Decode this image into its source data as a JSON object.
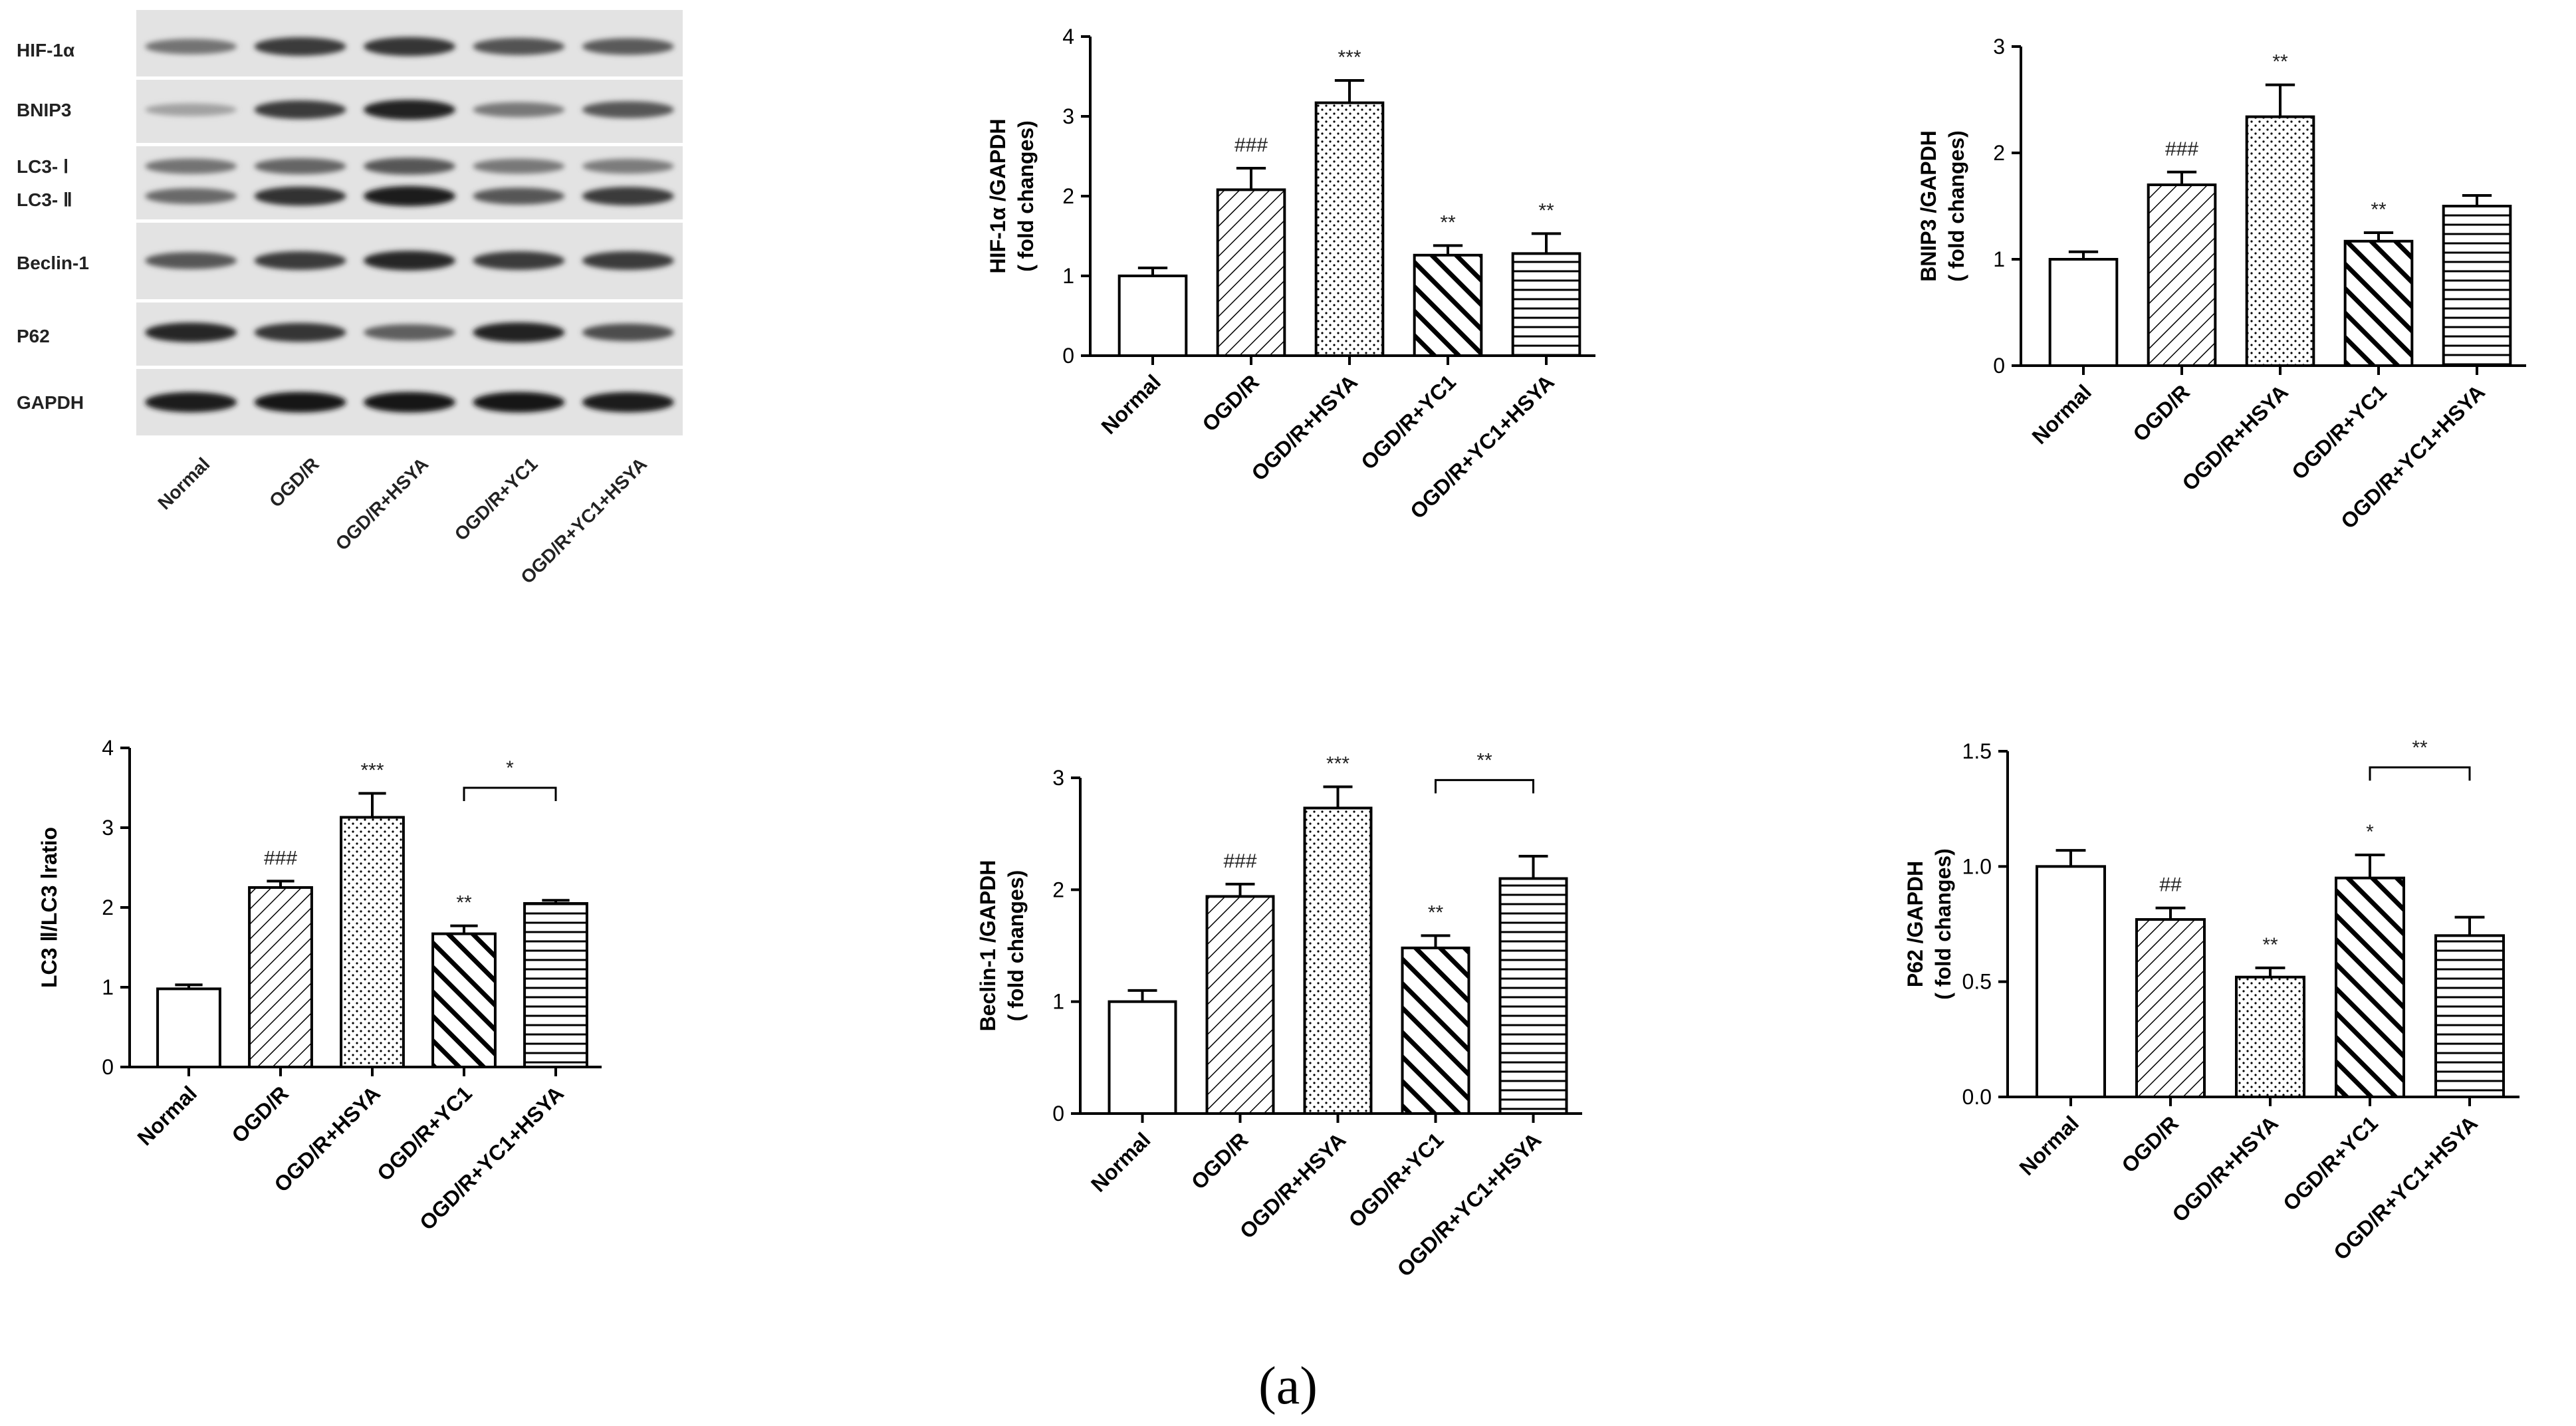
{
  "figure": {
    "caption": "(a)"
  },
  "blot": {
    "rows": [
      {
        "label": "HIF-1α",
        "bands": [
          0.45,
          0.75,
          0.78,
          0.62,
          0.58
        ]
      },
      {
        "label": "BNIP3",
        "bands": [
          0.2,
          0.75,
          0.88,
          0.42,
          0.6
        ]
      },
      {
        "label": "LC3- Ⅰ",
        "bands": [
          0.45,
          0.52,
          0.6,
          0.42,
          0.4
        ]
      },
      {
        "label": "LC3- Ⅱ",
        "bands": [
          0.5,
          0.8,
          0.9,
          0.6,
          0.75
        ]
      },
      {
        "label": "Beclin-1",
        "bands": [
          0.6,
          0.75,
          0.85,
          0.75,
          0.75
        ]
      },
      {
        "label": "P62",
        "bands": [
          0.85,
          0.78,
          0.55,
          0.88,
          0.65
        ]
      },
      {
        "label": "GAPDH",
        "bands": [
          0.9,
          0.92,
          0.92,
          0.92,
          0.9
        ]
      }
    ],
    "lanes": [
      "Normal",
      "OGD/R",
      "OGD/R+HSYA",
      "OGD/R+YC1",
      "OGD/R+YC1+HSYA"
    ]
  },
  "chart_data": [
    {
      "type": "bar",
      "ylabel": "HIF-1α /GAPDH",
      "ylabel2": "( fold changes)",
      "categories": [
        "Normal",
        "OGD/R",
        "OGD/R+HSYA",
        "OGD/R+YC1",
        "OGD/R+YC1+HSYA"
      ],
      "values": [
        1.0,
        2.08,
        3.17,
        1.26,
        1.28
      ],
      "errors": [
        0.1,
        0.27,
        0.28,
        0.12,
        0.25
      ],
      "annotations": [
        "",
        "###",
        "***",
        "**",
        "**"
      ],
      "ylim": [
        0,
        4
      ],
      "yticks": [
        "0",
        "1",
        "2",
        "3",
        "4"
      ],
      "brackets": []
    },
    {
      "type": "bar",
      "ylabel": "BNIP3 /GAPDH",
      "ylabel2": "( fold changes)",
      "categories": [
        "Normal",
        "OGD/R",
        "OGD/R+HSYA",
        "OGD/R+YC1",
        "OGD/R+YC1+HSYA"
      ],
      "values": [
        1.0,
        1.7,
        2.34,
        1.17,
        1.5
      ],
      "errors": [
        0.07,
        0.12,
        0.3,
        0.08,
        0.1
      ],
      "annotations": [
        "",
        "###",
        "**",
        "**",
        ""
      ],
      "ylim": [
        0,
        3
      ],
      "yticks": [
        "0",
        "1",
        "2",
        "3"
      ],
      "brackets": []
    },
    {
      "type": "bar",
      "ylabel": "LC3 Ⅱ/LC3  Ⅰratio",
      "ylabel2": "",
      "categories": [
        "Normal",
        "OGD/R",
        "OGD/R+HSYA",
        "OGD/R+YC1",
        "OGD/R+YC1+HSYA"
      ],
      "values": [
        0.98,
        2.25,
        3.13,
        1.67,
        2.05
      ],
      "errors": [
        0.05,
        0.08,
        0.3,
        0.1,
        0.04
      ],
      "annotations": [
        "",
        "###",
        "***",
        "**",
        ""
      ],
      "ylim": [
        0,
        4
      ],
      "yticks": [
        "0",
        "1",
        "2",
        "3",
        "4"
      ],
      "brackets": [
        {
          "from": 3,
          "to": 4,
          "label": "*",
          "y": 3.5
        }
      ]
    },
    {
      "type": "bar",
      "ylabel": "Beclin-1 /GAPDH",
      "ylabel2": "( fold changes)",
      "categories": [
        "Normal",
        "OGD/R",
        "OGD/R+HSYA",
        "OGD/R+YC1",
        "OGD/R+YC1+HSYA"
      ],
      "values": [
        1.0,
        1.94,
        2.73,
        1.48,
        2.1
      ],
      "errors": [
        0.1,
        0.11,
        0.19,
        0.11,
        0.2
      ],
      "annotations": [
        "",
        "###",
        "***",
        "**",
        ""
      ],
      "ylim": [
        0,
        3
      ],
      "yticks": [
        "0",
        "1",
        "2",
        "3"
      ],
      "brackets": [
        {
          "from": 3,
          "to": 4,
          "label": "**",
          "y": 2.98
        }
      ]
    },
    {
      "type": "bar",
      "ylabel": "P62 /GAPDH",
      "ylabel2": "( fold changes)",
      "categories": [
        "Normal",
        "OGD/R",
        "OGD/R+HSYA",
        "OGD/R+YC1",
        "OGD/R+YC1+HSYA"
      ],
      "values": [
        1.0,
        0.77,
        0.52,
        0.95,
        0.7
      ],
      "errors": [
        0.07,
        0.05,
        0.04,
        0.1,
        0.08
      ],
      "annotations": [
        "",
        "##",
        "**",
        "*",
        ""
      ],
      "ylim": [
        0,
        1.5
      ],
      "yticks": [
        "0.0",
        "0.5",
        "1.0",
        "1.5"
      ],
      "brackets": [
        {
          "from": 3,
          "to": 4,
          "label": "**",
          "y": 1.43
        }
      ]
    }
  ],
  "patterns": [
    "none",
    "diagonal",
    "dots",
    "thickdiagonal",
    "horizontal"
  ]
}
